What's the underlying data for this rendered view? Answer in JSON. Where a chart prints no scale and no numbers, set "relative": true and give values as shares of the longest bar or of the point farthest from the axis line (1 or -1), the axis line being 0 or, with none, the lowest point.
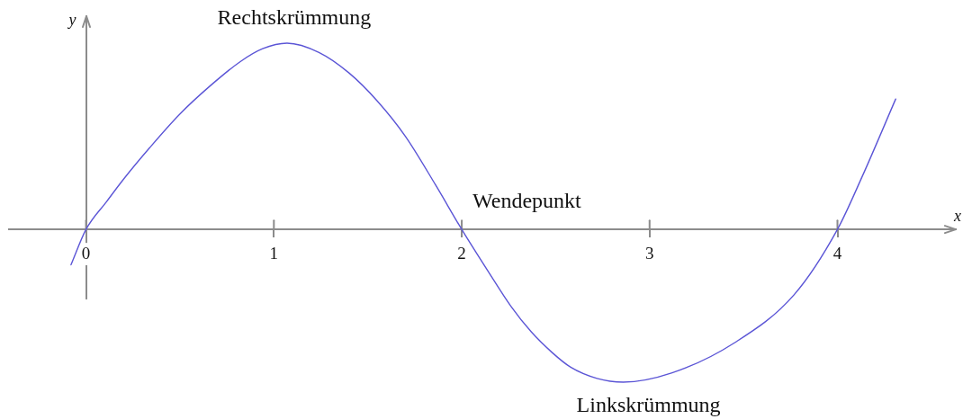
{
  "chart_data": {
    "type": "line",
    "relative": true,
    "xlabel": "x",
    "ylabel": "y",
    "x": [
      -0.08,
      0,
      0.11,
      0.2,
      0.34,
      0.5,
      0.66,
      0.82,
      0.94,
      1.07,
      1.24,
      1.4,
      1.55,
      1.7,
      1.86,
      2,
      2.15,
      2.26,
      2.37,
      2.48,
      2.58,
      2.72,
      2.86,
      3.12,
      3.45,
      3.77,
      4,
      4.13,
      4.31
    ],
    "xlim": [
      -0.41,
      4.63
    ],
    "xticks": [
      0,
      1,
      2,
      3,
      4
    ],
    "series": [
      {
        "color": "#5b55d6",
        "values": [
          -0.19,
          0,
          0.15,
          0.27,
          0.44,
          0.62,
          0.77,
          0.9,
          0.97,
          1,
          0.95,
          0.84,
          0.69,
          0.5,
          0.24,
          0,
          -0.24,
          -0.41,
          -0.55,
          -0.66,
          -0.74,
          -0.8,
          -0.82,
          -0.77,
          -0.61,
          -0.35,
          0,
          0.28,
          0.7
        ]
      }
    ],
    "annotations": [
      {
        "text": "Rechtskrümmung",
        "x": 1.07,
        "y": 1
      },
      {
        "text": "Wendepunkt",
        "x": 2,
        "y": 0
      },
      {
        "text": "Linkskrümmung",
        "x": 2.86,
        "y": -0.82
      }
    ]
  }
}
